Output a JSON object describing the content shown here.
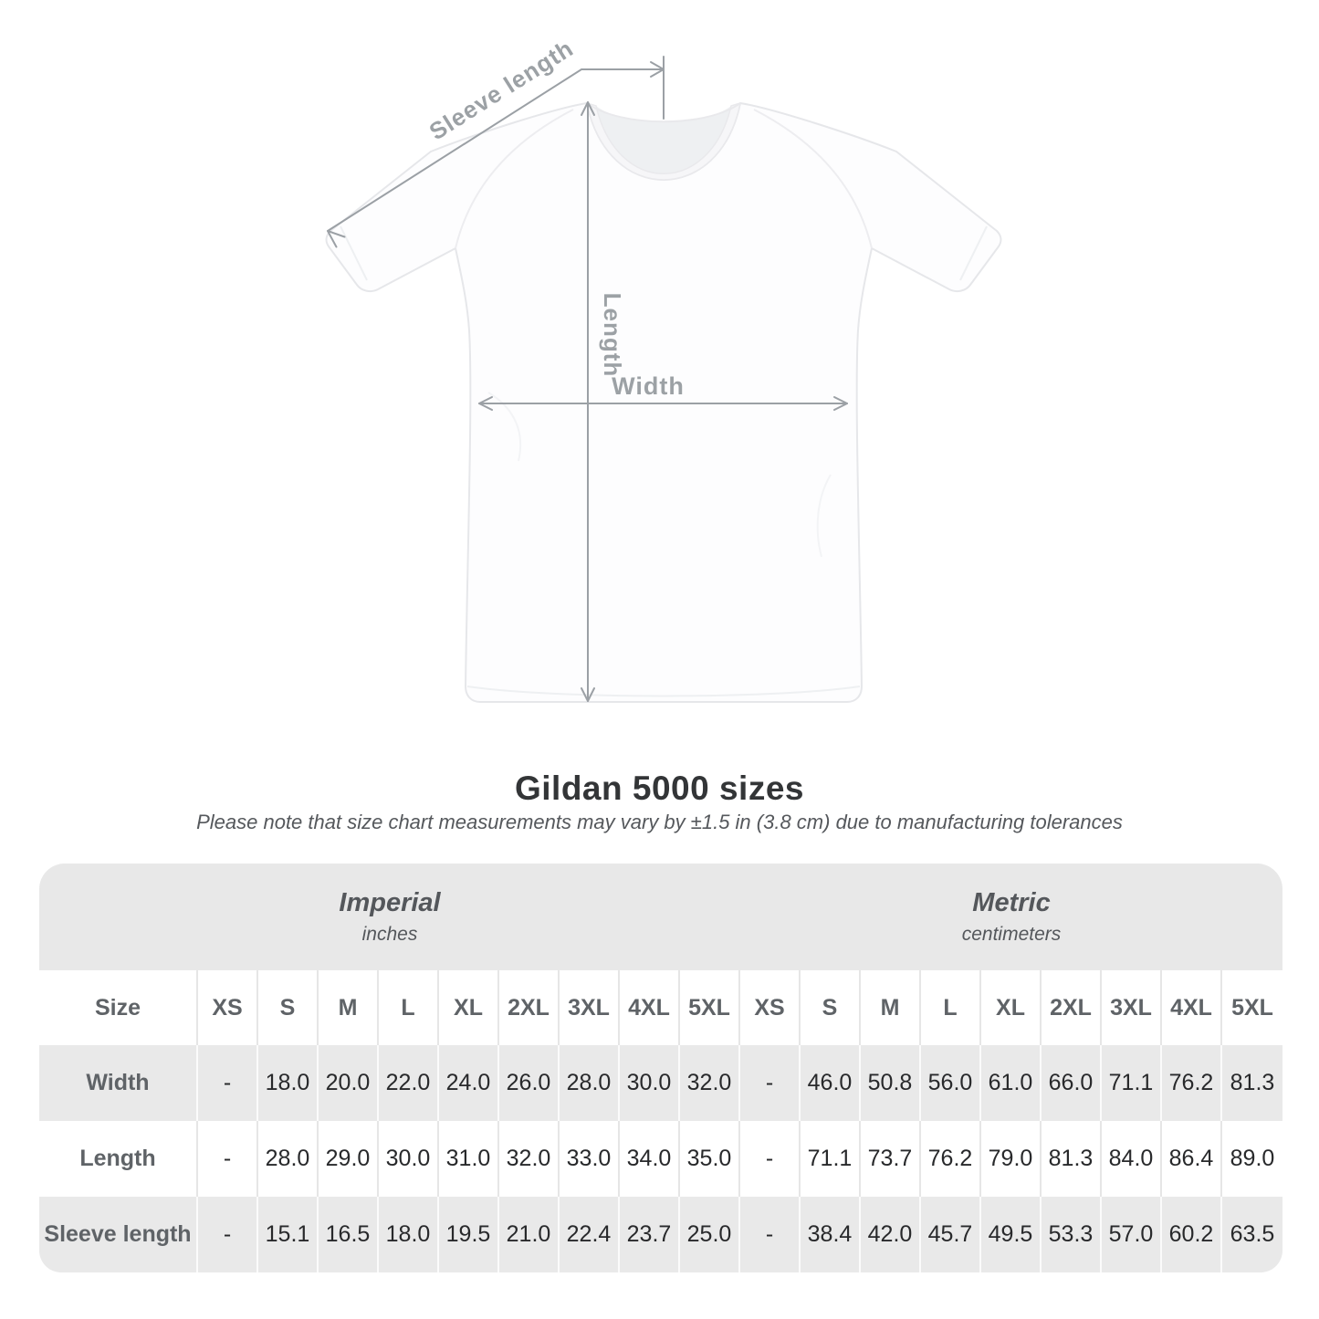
{
  "title": "Gildan 5000 sizes",
  "subtitle": "Please note that size chart measurements may vary by ±1.5 in (3.8 cm) due to manufacturing tolerances",
  "diagram": {
    "labels": {
      "sleeve_length": "Sleeve length",
      "length": "Length",
      "width": "Width"
    },
    "line_color": "#9ba0a5",
    "label_color": "#9ca1a5",
    "shirt_color": "#fdfdfe"
  },
  "table": {
    "size_header": "Size",
    "unit_groups": [
      {
        "label": "Imperial",
        "sublabel": "inches"
      },
      {
        "label": "Metric",
        "sublabel": "centimeters"
      }
    ],
    "sizes": [
      "XS",
      "S",
      "M",
      "L",
      "XL",
      "2XL",
      "3XL",
      "4XL",
      "5XL"
    ],
    "rows": [
      {
        "label": "Width",
        "imperial": [
          "-",
          "18.0",
          "20.0",
          "22.0",
          "24.0",
          "26.0",
          "28.0",
          "30.0",
          "32.0"
        ],
        "metric": [
          "-",
          "46.0",
          "50.8",
          "56.0",
          "61.0",
          "66.0",
          "71.1",
          "76.2",
          "81.3"
        ]
      },
      {
        "label": "Length",
        "imperial": [
          "-",
          "28.0",
          "29.0",
          "30.0",
          "31.0",
          "32.0",
          "33.0",
          "34.0",
          "35.0"
        ],
        "metric": [
          "-",
          "71.1",
          "73.7",
          "76.2",
          "79.0",
          "81.3",
          "84.0",
          "86.4",
          "89.0"
        ]
      },
      {
        "label": "Sleeve length",
        "imperial": [
          "-",
          "15.1",
          "16.5",
          "18.0",
          "19.5",
          "21.0",
          "22.4",
          "23.7",
          "25.0"
        ],
        "metric": [
          "-",
          "38.4",
          "42.0",
          "45.7",
          "49.5",
          "53.3",
          "57.0",
          "60.2",
          "63.5"
        ]
      }
    ]
  },
  "chart_data": {
    "type": "table",
    "title": "Gildan 5000 sizes",
    "subtitle": "Please note that size chart measurements may vary by ±1.5 in (3.8 cm) due to manufacturing tolerances",
    "column_groups": [
      "Imperial (inches)",
      "Metric (centimeters)"
    ],
    "columns": [
      "Size",
      "XS",
      "S",
      "M",
      "L",
      "XL",
      "2XL",
      "3XL",
      "4XL",
      "5XL",
      "XS",
      "S",
      "M",
      "L",
      "XL",
      "2XL",
      "3XL",
      "4XL",
      "5XL"
    ],
    "rows": [
      [
        "Width",
        "-",
        "18.0",
        "20.0",
        "22.0",
        "24.0",
        "26.0",
        "28.0",
        "30.0",
        "32.0",
        "-",
        "46.0",
        "50.8",
        "56.0",
        "61.0",
        "66.0",
        "71.1",
        "76.2",
        "81.3"
      ],
      [
        "Length",
        "-",
        "28.0",
        "29.0",
        "30.0",
        "31.0",
        "32.0",
        "33.0",
        "34.0",
        "35.0",
        "-",
        "71.1",
        "73.7",
        "76.2",
        "79.0",
        "81.3",
        "84.0",
        "86.4",
        "89.0"
      ],
      [
        "Sleeve length",
        "-",
        "15.1",
        "16.5",
        "18.0",
        "19.5",
        "21.0",
        "22.4",
        "23.7",
        "25.0",
        "-",
        "38.4",
        "42.0",
        "45.7",
        "49.5",
        "53.3",
        "57.0",
        "60.2",
        "63.5"
      ]
    ]
  }
}
